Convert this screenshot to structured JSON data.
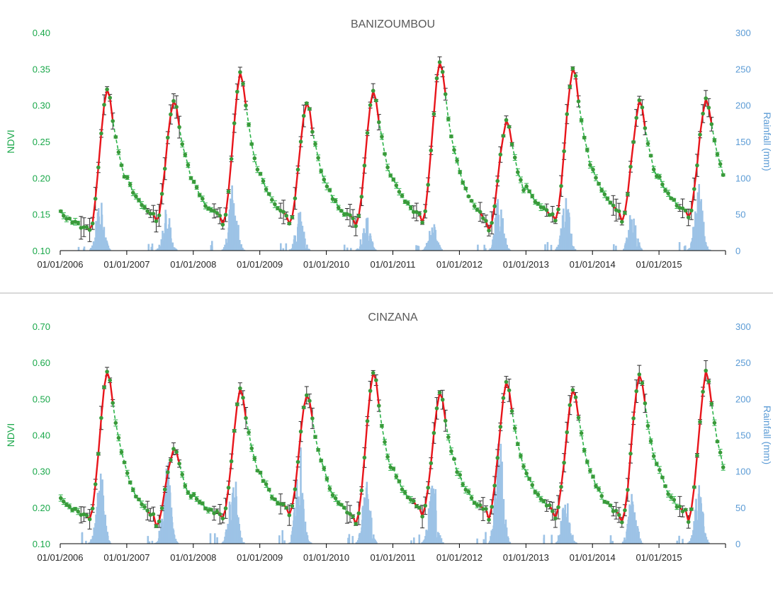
{
  "colors": {
    "ndvi_axis": "#1aa84a",
    "rain_axis": "#5b9bd5",
    "rain_bar": "#9dc3e6",
    "green_line": "#2db34a",
    "green_point": "#3a9a3a",
    "red_line": "#e8151b",
    "title": "#595959",
    "tick": "#262626",
    "axis_line": "#000000",
    "divider": "#d9d9d9"
  },
  "x_tick_labels": [
    "01/01/2006",
    "01/01/2007",
    "01/01/2008",
    "01/01/2009",
    "01/01/2010",
    "01/01/2011",
    "01/01/2012",
    "01/01/2013",
    "01/01/2014",
    "01/01/2015"
  ],
  "chart_data": [
    {
      "type": "line",
      "title": "BANIZOUMBOU",
      "ylabel": "NDVI",
      "y2label": "Rainfall (mm)",
      "ylim": [
        0.1,
        0.4
      ],
      "y_ticks": [
        "0.10",
        "0.15",
        "0.20",
        "0.25",
        "0.30",
        "0.35",
        "0.40"
      ],
      "y2lim": [
        0,
        300
      ],
      "y2_ticks": [
        "0",
        "50",
        "100",
        "150",
        "200",
        "250",
        "300"
      ],
      "x_range": [
        2006.0,
        2016.0
      ],
      "legend": "none",
      "grid": false,
      "annual": [
        {
          "year": 2006,
          "base": 0.125,
          "peak": 0.327
        },
        {
          "year": 2007,
          "base": 0.138,
          "peak": 0.311
        },
        {
          "year": 2008,
          "base": 0.135,
          "peak": 0.348
        },
        {
          "year": 2009,
          "base": 0.136,
          "peak": 0.305
        },
        {
          "year": 2010,
          "base": 0.132,
          "peak": 0.323
        },
        {
          "year": 2011,
          "base": 0.138,
          "peak": 0.365
        },
        {
          "year": 2012,
          "base": 0.128,
          "peak": 0.28
        },
        {
          "year": 2013,
          "base": 0.14,
          "peak": 0.356
        },
        {
          "year": 2014,
          "base": 0.14,
          "peak": 0.307
        },
        {
          "year": 2015,
          "base": 0.145,
          "peak": 0.312
        }
      ],
      "rain_peaks_mm": [
        75,
        60,
        95,
        60,
        50,
        40,
        80,
        75,
        62,
        110
      ]
    },
    {
      "type": "line",
      "title": "CINZANA",
      "ylabel": "NDVI",
      "y2label": "Rainfall (mm)",
      "ylim": [
        0.1,
        0.7
      ],
      "y_ticks": [
        "0.10",
        "0.20",
        "0.30",
        "0.40",
        "0.50",
        "0.60",
        "0.70"
      ],
      "y2lim": [
        0,
        300
      ],
      "y2_ticks": [
        "0",
        "50",
        "100",
        "150",
        "200",
        "250",
        "300"
      ],
      "x_range": [
        2006.0,
        2016.0
      ],
      "legend": "none",
      "grid": false,
      "annual": [
        {
          "year": 2006,
          "base": 0.165,
          "peak": 0.585
        },
        {
          "year": 2007,
          "base": 0.15,
          "peak": 0.365
        },
        {
          "year": 2008,
          "base": 0.17,
          "peak": 0.535
        },
        {
          "year": 2009,
          "base": 0.175,
          "peak": 0.52
        },
        {
          "year": 2010,
          "base": 0.155,
          "peak": 0.58
        },
        {
          "year": 2011,
          "base": 0.175,
          "peak": 0.52
        },
        {
          "year": 2012,
          "base": 0.17,
          "peak": 0.55
        },
        {
          "year": 2013,
          "base": 0.17,
          "peak": 0.53
        },
        {
          "year": 2014,
          "base": 0.16,
          "peak": 0.58
        },
        {
          "year": 2015,
          "base": 0.16,
          "peak": 0.58
        }
      ],
      "rain_peaks_mm": [
        110,
        130,
        115,
        140,
        95,
        105,
        170,
        80,
        75,
        85
      ]
    }
  ]
}
